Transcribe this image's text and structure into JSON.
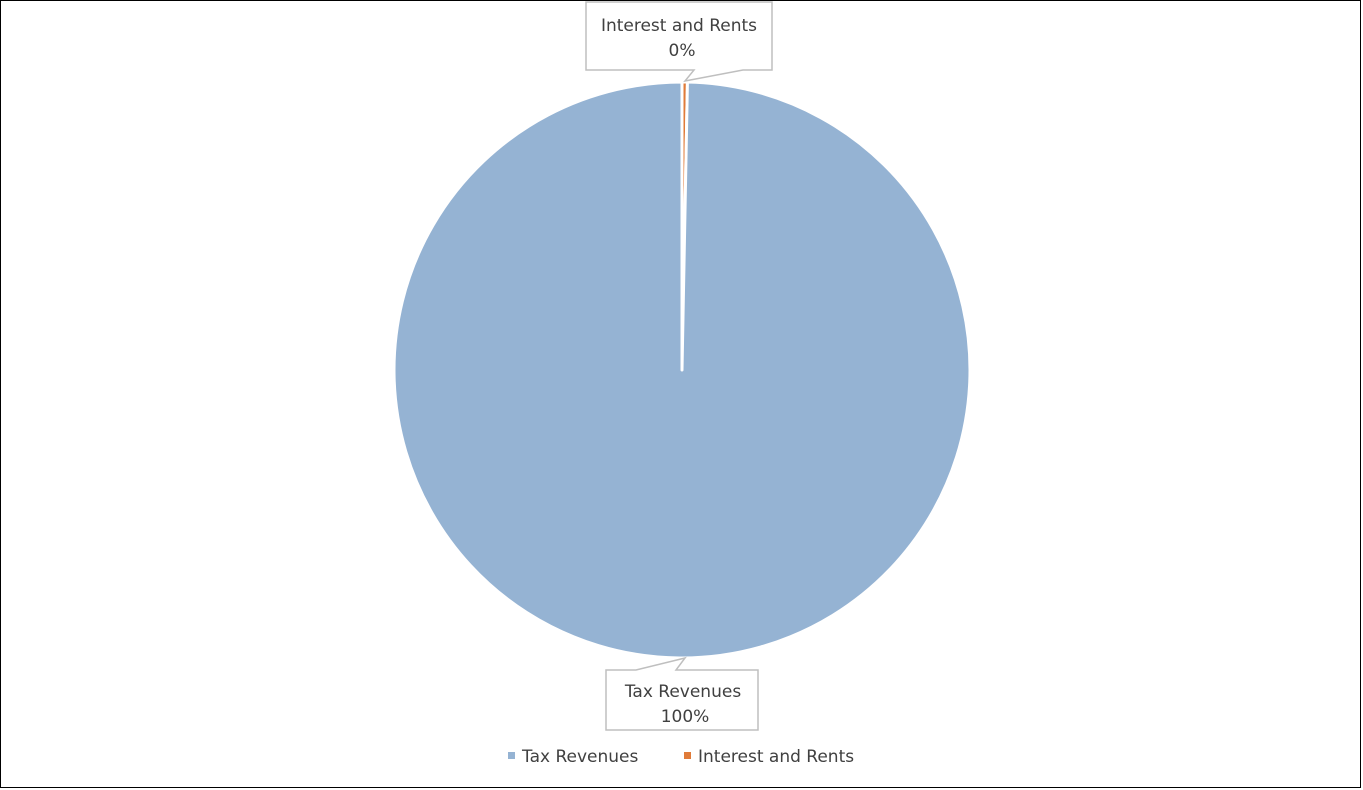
{
  "chart_data": {
    "type": "pie",
    "title": "",
    "categories": [
      "Tax Revenues",
      "Interest and Rents"
    ],
    "values": [
      99.7,
      0.3
    ],
    "data_labels": [
      {
        "category": "Tax Revenues",
        "percent": "100%"
      },
      {
        "category": "Interest and Rents",
        "percent": "0%"
      }
    ],
    "colors": [
      "#95B3D3",
      "#E07B39"
    ],
    "slice_border_color": "#FFFFFF",
    "legend": {
      "position": "bottom",
      "items": [
        "Tax Revenues",
        "Interest and Rents"
      ]
    }
  }
}
